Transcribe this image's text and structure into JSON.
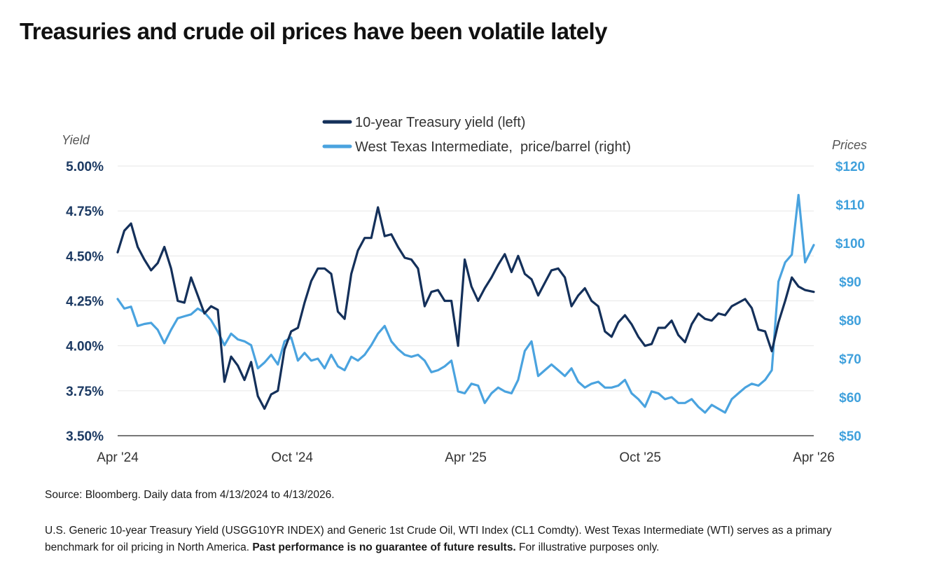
{
  "title": "Treasuries and crude oil prices have been volatile lately",
  "source": "Source: Bloomberg. Daily data from 4/13/2024 to 4/13/2026.",
  "footnote": {
    "text1": "U.S. Generic 10-year Treasury Yield (USGG10YR INDEX) and Generic 1st Crude Oil, WTI Index (CL1 Comdty). West Texas Intermediate (WTI) serves as a primary benchmark for oil pricing in North America. ",
    "bold": "Past performance is no guarantee of future results.",
    "text2": " For illustrative purposes only."
  },
  "colors": {
    "yield": "#14305a",
    "oil": "#4aa3df",
    "axis_left": "#1c3a63",
    "axis_right": "#3fa0dc",
    "grid": "#e6e6e6",
    "baseline": "#777777"
  },
  "chart_data": {
    "type": "line",
    "legend_placement": "top-center",
    "grid": true,
    "y_left": {
      "label": "Yield",
      "range": [
        3.5,
        5.0
      ],
      "ticks": [
        "5.00%",
        "4.75%",
        "4.50%",
        "4.25%",
        "4.00%",
        "3.75%",
        "3.50%"
      ],
      "tick_values": [
        5.0,
        4.75,
        4.5,
        4.25,
        4.0,
        3.75,
        3.5
      ]
    },
    "y_right": {
      "label": "Prices",
      "range": [
        50,
        120
      ],
      "ticks": [
        "$120",
        "$110",
        "$100",
        "$90",
        "$80",
        "$70",
        "$60",
        "$50"
      ],
      "tick_values": [
        120,
        110,
        100,
        90,
        80,
        70,
        60,
        50
      ]
    },
    "x_axis": {
      "range": [
        "2024-04-13",
        "2026-04-13"
      ],
      "ticks": [
        "Apr '24",
        "Oct '24",
        "Apr '25",
        "Oct '25",
        "Apr '26"
      ],
      "tick_dates": [
        "2024-04-13",
        "2024-10-13",
        "2025-04-13",
        "2025-10-13",
        "2026-04-13"
      ]
    },
    "series": [
      {
        "name": "10-year Treasury yield (left)",
        "axis": "left",
        "points": [
          [
            "2024-04-13",
            4.52
          ],
          [
            "2024-04-20",
            4.64
          ],
          [
            "2024-04-27",
            4.68
          ],
          [
            "2024-05-04",
            4.55
          ],
          [
            "2024-05-11",
            4.48
          ],
          [
            "2024-05-18",
            4.42
          ],
          [
            "2024-05-25",
            4.46
          ],
          [
            "2024-06-01",
            4.55
          ],
          [
            "2024-06-08",
            4.43
          ],
          [
            "2024-06-15",
            4.25
          ],
          [
            "2024-06-22",
            4.24
          ],
          [
            "2024-06-29",
            4.38
          ],
          [
            "2024-07-06",
            4.28
          ],
          [
            "2024-07-13",
            4.18
          ],
          [
            "2024-07-20",
            4.22
          ],
          [
            "2024-07-27",
            4.2
          ],
          [
            "2024-08-03",
            3.8
          ],
          [
            "2024-08-10",
            3.94
          ],
          [
            "2024-08-17",
            3.89
          ],
          [
            "2024-08-24",
            3.81
          ],
          [
            "2024-08-31",
            3.91
          ],
          [
            "2024-09-07",
            3.72
          ],
          [
            "2024-09-14",
            3.65
          ],
          [
            "2024-09-21",
            3.73
          ],
          [
            "2024-09-28",
            3.75
          ],
          [
            "2024-10-05",
            3.98
          ],
          [
            "2024-10-12",
            4.08
          ],
          [
            "2024-10-19",
            4.1
          ],
          [
            "2024-10-26",
            4.24
          ],
          [
            "2024-11-02",
            4.36
          ],
          [
            "2024-11-09",
            4.43
          ],
          [
            "2024-11-16",
            4.43
          ],
          [
            "2024-11-23",
            4.4
          ],
          [
            "2024-11-30",
            4.19
          ],
          [
            "2024-12-07",
            4.15
          ],
          [
            "2024-12-14",
            4.4
          ],
          [
            "2024-12-21",
            4.53
          ],
          [
            "2024-12-28",
            4.6
          ],
          [
            "2025-01-04",
            4.6
          ],
          [
            "2025-01-11",
            4.77
          ],
          [
            "2025-01-18",
            4.61
          ],
          [
            "2025-01-25",
            4.62
          ],
          [
            "2025-02-01",
            4.55
          ],
          [
            "2025-02-08",
            4.49
          ],
          [
            "2025-02-15",
            4.48
          ],
          [
            "2025-02-22",
            4.43
          ],
          [
            "2025-03-01",
            4.22
          ],
          [
            "2025-03-08",
            4.3
          ],
          [
            "2025-03-15",
            4.31
          ],
          [
            "2025-03-22",
            4.25
          ],
          [
            "2025-03-29",
            4.25
          ],
          [
            "2025-04-05",
            4.0
          ],
          [
            "2025-04-12",
            4.48
          ],
          [
            "2025-04-19",
            4.33
          ],
          [
            "2025-04-26",
            4.25
          ],
          [
            "2025-05-03",
            4.32
          ],
          [
            "2025-05-10",
            4.38
          ],
          [
            "2025-05-17",
            4.45
          ],
          [
            "2025-05-24",
            4.51
          ],
          [
            "2025-05-31",
            4.41
          ],
          [
            "2025-06-07",
            4.5
          ],
          [
            "2025-06-14",
            4.4
          ],
          [
            "2025-06-21",
            4.37
          ],
          [
            "2025-06-28",
            4.28
          ],
          [
            "2025-07-05",
            4.35
          ],
          [
            "2025-07-12",
            4.42
          ],
          [
            "2025-07-19",
            4.43
          ],
          [
            "2025-07-26",
            4.38
          ],
          [
            "2025-08-02",
            4.22
          ],
          [
            "2025-08-09",
            4.28
          ],
          [
            "2025-08-16",
            4.32
          ],
          [
            "2025-08-23",
            4.25
          ],
          [
            "2025-08-30",
            4.22
          ],
          [
            "2025-09-06",
            4.08
          ],
          [
            "2025-09-13",
            4.05
          ],
          [
            "2025-09-20",
            4.13
          ],
          [
            "2025-09-27",
            4.17
          ],
          [
            "2025-10-04",
            4.12
          ],
          [
            "2025-10-11",
            4.05
          ],
          [
            "2025-10-18",
            4.0
          ],
          [
            "2025-10-25",
            4.01
          ],
          [
            "2025-11-01",
            4.1
          ],
          [
            "2025-11-08",
            4.1
          ],
          [
            "2025-11-15",
            4.14
          ],
          [
            "2025-11-22",
            4.06
          ],
          [
            "2025-11-29",
            4.02
          ],
          [
            "2025-12-06",
            4.12
          ],
          [
            "2025-12-13",
            4.18
          ],
          [
            "2025-12-20",
            4.15
          ],
          [
            "2025-12-27",
            4.14
          ],
          [
            "2026-01-03",
            4.18
          ],
          [
            "2026-01-10",
            4.17
          ],
          [
            "2026-01-17",
            4.22
          ],
          [
            "2026-01-24",
            4.24
          ],
          [
            "2026-01-31",
            4.26
          ],
          [
            "2026-02-07",
            4.21
          ],
          [
            "2026-02-14",
            4.09
          ],
          [
            "2026-02-21",
            4.08
          ],
          [
            "2026-02-28",
            3.97
          ],
          [
            "2026-03-07",
            4.13
          ],
          [
            "2026-03-14",
            4.25
          ],
          [
            "2026-03-21",
            4.38
          ],
          [
            "2026-03-28",
            4.33
          ],
          [
            "2026-04-04",
            4.31
          ],
          [
            "2026-04-13",
            4.3
          ]
        ]
      },
      {
        "name": "West Texas Intermediate,  price/barrel (right)",
        "axis": "right",
        "points": [
          [
            "2024-04-13",
            85.5
          ],
          [
            "2024-04-20",
            83.0
          ],
          [
            "2024-04-27",
            83.5
          ],
          [
            "2024-05-04",
            78.5
          ],
          [
            "2024-05-11",
            79.0
          ],
          [
            "2024-05-18",
            79.3
          ],
          [
            "2024-05-25",
            77.5
          ],
          [
            "2024-06-01",
            74.0
          ],
          [
            "2024-06-08",
            77.5
          ],
          [
            "2024-06-15",
            80.5
          ],
          [
            "2024-06-22",
            81.0
          ],
          [
            "2024-06-29",
            81.5
          ],
          [
            "2024-07-06",
            83.0
          ],
          [
            "2024-07-13",
            82.0
          ],
          [
            "2024-07-20",
            80.0
          ],
          [
            "2024-07-27",
            77.0
          ],
          [
            "2024-08-03",
            73.5
          ],
          [
            "2024-08-10",
            76.5
          ],
          [
            "2024-08-17",
            75.0
          ],
          [
            "2024-08-24",
            74.5
          ],
          [
            "2024-08-31",
            73.5
          ],
          [
            "2024-09-07",
            67.5
          ],
          [
            "2024-09-14",
            69.0
          ],
          [
            "2024-09-21",
            71.0
          ],
          [
            "2024-09-28",
            68.5
          ],
          [
            "2024-10-05",
            74.5
          ],
          [
            "2024-10-12",
            75.5
          ],
          [
            "2024-10-19",
            69.5
          ],
          [
            "2024-10-26",
            71.5
          ],
          [
            "2024-11-02",
            69.5
          ],
          [
            "2024-11-09",
            70.0
          ],
          [
            "2024-11-16",
            67.5
          ],
          [
            "2024-11-23",
            71.0
          ],
          [
            "2024-11-30",
            68.0
          ],
          [
            "2024-12-07",
            67.0
          ],
          [
            "2024-12-14",
            70.5
          ],
          [
            "2024-12-21",
            69.5
          ],
          [
            "2024-12-28",
            71.0
          ],
          [
            "2025-01-04",
            73.5
          ],
          [
            "2025-01-11",
            76.5
          ],
          [
            "2025-01-18",
            78.5
          ],
          [
            "2025-01-25",
            74.5
          ],
          [
            "2025-02-01",
            72.5
          ],
          [
            "2025-02-08",
            71.0
          ],
          [
            "2025-02-15",
            70.5
          ],
          [
            "2025-02-22",
            71.0
          ],
          [
            "2025-03-01",
            69.5
          ],
          [
            "2025-03-08",
            66.5
          ],
          [
            "2025-03-15",
            67.0
          ],
          [
            "2025-03-22",
            68.0
          ],
          [
            "2025-03-29",
            69.5
          ],
          [
            "2025-04-05",
            61.5
          ],
          [
            "2025-04-12",
            61.0
          ],
          [
            "2025-04-19",
            63.5
          ],
          [
            "2025-04-26",
            63.0
          ],
          [
            "2025-05-03",
            58.5
          ],
          [
            "2025-05-10",
            61.0
          ],
          [
            "2025-05-17",
            62.5
          ],
          [
            "2025-05-24",
            61.5
          ],
          [
            "2025-05-31",
            61.0
          ],
          [
            "2025-06-07",
            64.5
          ],
          [
            "2025-06-14",
            72.0
          ],
          [
            "2025-06-21",
            74.5
          ],
          [
            "2025-06-28",
            65.5
          ],
          [
            "2025-07-05",
            67.0
          ],
          [
            "2025-07-12",
            68.5
          ],
          [
            "2025-07-19",
            67.0
          ],
          [
            "2025-07-26",
            65.5
          ],
          [
            "2025-08-02",
            67.5
          ],
          [
            "2025-08-09",
            64.0
          ],
          [
            "2025-08-16",
            62.5
          ],
          [
            "2025-08-23",
            63.5
          ],
          [
            "2025-08-30",
            64.0
          ],
          [
            "2025-09-06",
            62.5
          ],
          [
            "2025-09-13",
            62.5
          ],
          [
            "2025-09-20",
            63.0
          ],
          [
            "2025-09-27",
            64.5
          ],
          [
            "2025-10-04",
            61.0
          ],
          [
            "2025-10-11",
            59.5
          ],
          [
            "2025-10-18",
            57.5
          ],
          [
            "2025-10-25",
            61.5
          ],
          [
            "2025-11-01",
            61.0
          ],
          [
            "2025-11-08",
            59.5
          ],
          [
            "2025-11-15",
            60.0
          ],
          [
            "2025-11-22",
            58.5
          ],
          [
            "2025-11-29",
            58.5
          ],
          [
            "2025-12-06",
            59.5
          ],
          [
            "2025-12-13",
            57.5
          ],
          [
            "2025-12-20",
            56.0
          ],
          [
            "2025-12-27",
            58.0
          ],
          [
            "2026-01-03",
            57.0
          ],
          [
            "2026-01-10",
            56.0
          ],
          [
            "2026-01-17",
            59.5
          ],
          [
            "2026-01-24",
            61.0
          ],
          [
            "2026-01-31",
            62.5
          ],
          [
            "2026-02-07",
            63.5
          ],
          [
            "2026-02-14",
            63.0
          ],
          [
            "2026-02-21",
            64.5
          ],
          [
            "2026-02-28",
            67.0
          ],
          [
            "2026-03-07",
            90.0
          ],
          [
            "2026-03-14",
            95.0
          ],
          [
            "2026-03-21",
            97.0
          ],
          [
            "2026-03-28",
            112.5
          ],
          [
            "2026-04-04",
            95.0
          ],
          [
            "2026-04-13",
            99.5
          ]
        ]
      }
    ]
  }
}
